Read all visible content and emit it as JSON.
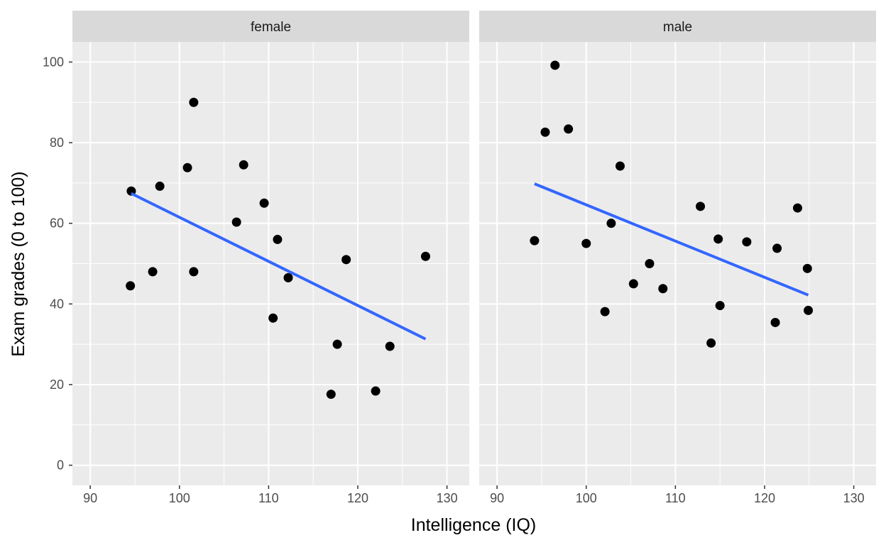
{
  "chart_data": {
    "type": "scatter",
    "facet_by": "sex",
    "xlabel": "Intelligence (IQ)",
    "ylabel": "Exam grades (0 to 100)",
    "xlim": [
      88,
      132.5
    ],
    "ylim": [
      -5,
      105
    ],
    "x_ticks": [
      90,
      100,
      110,
      120,
      130
    ],
    "y_ticks": [
      0,
      20,
      40,
      60,
      80,
      100
    ],
    "grid": true,
    "legend": "none",
    "colors": {
      "panel_bg": "#ebebeb",
      "strip_bg": "#d9d9d9",
      "grid": "#ffffff",
      "points": "#000000",
      "trend_line": "#3366ff"
    },
    "panels": [
      {
        "label": "female",
        "points": [
          {
            "x": 94.5,
            "y": 44.5
          },
          {
            "x": 94.6,
            "y": 68.0
          },
          {
            "x": 97.0,
            "y": 48.0
          },
          {
            "x": 97.8,
            "y": 69.2
          },
          {
            "x": 100.9,
            "y": 73.8
          },
          {
            "x": 101.6,
            "y": 48.0
          },
          {
            "x": 101.6,
            "y": 90.0
          },
          {
            "x": 106.4,
            "y": 60.3
          },
          {
            "x": 107.2,
            "y": 74.5
          },
          {
            "x": 109.5,
            "y": 65.0
          },
          {
            "x": 110.5,
            "y": 36.5
          },
          {
            "x": 111.0,
            "y": 56.0
          },
          {
            "x": 112.2,
            "y": 46.5
          },
          {
            "x": 117.0,
            "y": 17.6
          },
          {
            "x": 117.7,
            "y": 30.0
          },
          {
            "x": 118.7,
            "y": 51.0
          },
          {
            "x": 122.0,
            "y": 18.4
          },
          {
            "x": 123.6,
            "y": 29.5
          },
          {
            "x": 127.6,
            "y": 51.8
          }
        ],
        "trend": {
          "x_start": 94.6,
          "y_start": 67.4,
          "x_end": 127.6,
          "y_end": 31.3
        }
      },
      {
        "label": "male",
        "points": [
          {
            "x": 94.2,
            "y": 55.7
          },
          {
            "x": 95.4,
            "y": 82.6
          },
          {
            "x": 96.5,
            "y": 99.2
          },
          {
            "x": 98.0,
            "y": 83.4
          },
          {
            "x": 100.0,
            "y": 55.0
          },
          {
            "x": 102.1,
            "y": 38.1
          },
          {
            "x": 102.8,
            "y": 60.0
          },
          {
            "x": 103.8,
            "y": 74.2
          },
          {
            "x": 105.3,
            "y": 45.0
          },
          {
            "x": 107.1,
            "y": 50.0
          },
          {
            "x": 108.6,
            "y": 43.8
          },
          {
            "x": 112.8,
            "y": 64.2
          },
          {
            "x": 114.0,
            "y": 30.3
          },
          {
            "x": 114.8,
            "y": 56.1
          },
          {
            "x": 115.0,
            "y": 39.6
          },
          {
            "x": 118.0,
            "y": 55.4
          },
          {
            "x": 121.2,
            "y": 35.4
          },
          {
            "x": 121.4,
            "y": 53.8
          },
          {
            "x": 123.7,
            "y": 63.8
          },
          {
            "x": 124.8,
            "y": 48.8
          },
          {
            "x": 124.9,
            "y": 38.4
          }
        ],
        "trend": {
          "x_start": 94.2,
          "y_start": 69.8,
          "x_end": 124.9,
          "y_end": 42.2
        }
      }
    ]
  }
}
